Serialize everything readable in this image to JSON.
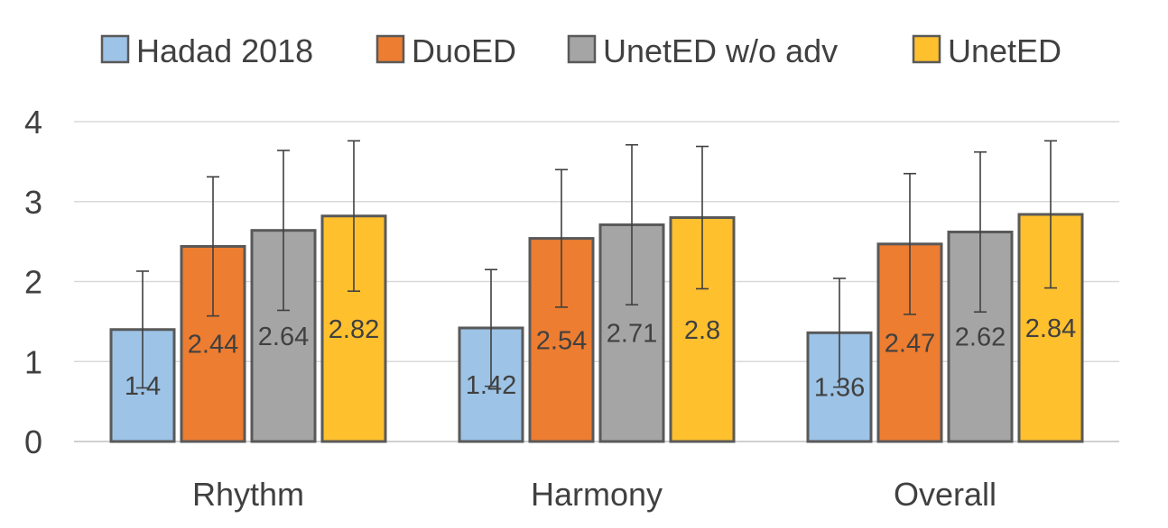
{
  "chart_data": {
    "type": "bar",
    "title": "",
    "xlabel": "",
    "ylabel": "",
    "ylim": [
      0,
      4
    ],
    "yticks": [
      0,
      1,
      2,
      3,
      4
    ],
    "grid": true,
    "legend_position": "top",
    "categories": [
      "Rhythm",
      "Harmony",
      "Overall"
    ],
    "series": [
      {
        "name": "Hadad 2018",
        "color": "#9dc3e6",
        "values": [
          1.4,
          1.42,
          1.36
        ],
        "labels": [
          "1.4",
          "1.42",
          "1.36"
        ],
        "error": [
          0.73,
          0.73,
          0.68
        ]
      },
      {
        "name": "DuoED",
        "color": "#ed7d31",
        "values": [
          2.44,
          2.54,
          2.47
        ],
        "labels": [
          "2.44",
          "2.54",
          "2.47"
        ],
        "error": [
          0.87,
          0.86,
          0.88
        ]
      },
      {
        "name": "UnetED w/o adv",
        "color": "#a5a5a5",
        "values": [
          2.64,
          2.71,
          2.62
        ],
        "labels": [
          "2.64",
          "2.71",
          "2.62"
        ],
        "error": [
          1.0,
          1.0,
          1.0
        ]
      },
      {
        "name": "UnetED",
        "color": "#ffc02e",
        "values": [
          2.82,
          2.8,
          2.84
        ],
        "labels": [
          "2.82",
          "2.8",
          "2.84"
        ],
        "error": [
          0.94,
          0.89,
          0.92
        ]
      }
    ]
  }
}
